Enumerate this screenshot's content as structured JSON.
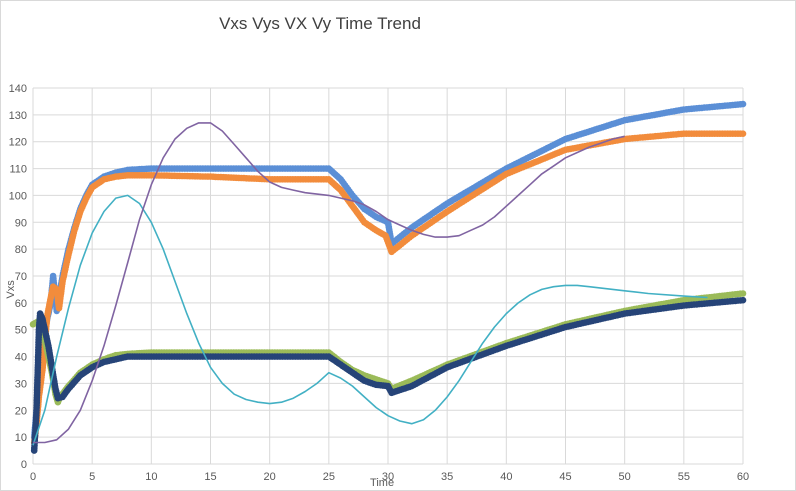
{
  "chart_data": {
    "type": "scatter",
    "title": "Vxs Vys VX Vy  Time  Trend",
    "xlabel": "Time",
    "ylabel": "Vxs",
    "xlim": [
      0,
      60
    ],
    "ylim": [
      0,
      140
    ],
    "xticks": [
      0,
      5,
      10,
      15,
      20,
      25,
      30,
      35,
      40,
      45,
      50,
      55,
      60
    ],
    "yticks": [
      0,
      10,
      20,
      30,
      40,
      50,
      60,
      70,
      80,
      90,
      100,
      110,
      120,
      130,
      140
    ],
    "grid": true,
    "legend": "none",
    "series": [
      {
        "style": "markers",
        "color": "#5b8fd6",
        "points": [
          [
            0.1,
            10
          ],
          [
            0.3,
            20
          ],
          [
            0.5,
            30
          ],
          [
            0.7,
            40
          ],
          [
            0.9,
            47
          ],
          [
            1.1,
            52
          ],
          [
            1.3,
            56
          ],
          [
            1.5,
            60
          ],
          [
            1.7,
            70
          ],
          [
            1.9,
            62
          ],
          [
            2,
            57
          ],
          [
            2.5,
            70
          ],
          [
            3,
            80
          ],
          [
            3.5,
            88
          ],
          [
            4,
            95
          ],
          [
            4.5,
            100
          ],
          [
            5,
            104
          ],
          [
            6,
            107
          ],
          [
            7,
            108.5
          ],
          [
            8,
            109.5
          ],
          [
            10,
            110
          ],
          [
            15,
            110
          ],
          [
            20,
            110
          ],
          [
            25,
            110
          ],
          [
            26,
            106
          ],
          [
            27,
            100
          ],
          [
            28,
            95
          ],
          [
            29,
            92
          ],
          [
            30,
            90
          ],
          [
            30.3,
            82
          ],
          [
            32,
            88
          ],
          [
            35,
            97
          ],
          [
            40,
            110
          ],
          [
            45,
            121
          ],
          [
            50,
            128
          ],
          [
            55,
            132
          ],
          [
            60,
            134
          ]
        ]
      },
      {
        "style": "markers",
        "color": "#f28c3c",
        "points": [
          [
            0.1,
            8
          ],
          [
            0.3,
            15
          ],
          [
            0.5,
            25
          ],
          [
            0.8,
            35
          ],
          [
            1,
            45
          ],
          [
            1.2,
            55
          ],
          [
            1.5,
            62
          ],
          [
            1.7,
            66
          ],
          [
            2,
            65
          ],
          [
            2.2,
            58
          ],
          [
            2.5,
            68
          ],
          [
            3,
            78
          ],
          [
            3.5,
            87
          ],
          [
            4,
            94
          ],
          [
            4.5,
            99
          ],
          [
            5,
            103
          ],
          [
            6,
            106
          ],
          [
            7,
            107
          ],
          [
            8,
            107.5
          ],
          [
            10,
            107.5
          ],
          [
            15,
            107
          ],
          [
            20,
            106
          ],
          [
            25,
            106
          ],
          [
            26,
            102
          ],
          [
            27,
            96
          ],
          [
            28,
            90
          ],
          [
            29,
            87
          ],
          [
            29.8,
            85
          ],
          [
            30.3,
            79
          ],
          [
            32,
            85
          ],
          [
            35,
            94
          ],
          [
            40,
            108
          ],
          [
            45,
            117
          ],
          [
            50,
            121
          ],
          [
            55,
            123
          ],
          [
            60,
            123
          ]
        ]
      },
      {
        "style": "markers",
        "color": "#9bbb59",
        "points": [
          [
            0,
            52
          ],
          [
            0.4,
            53
          ],
          [
            0.8,
            52
          ],
          [
            1,
            46
          ],
          [
            1.3,
            40
          ],
          [
            1.6,
            34
          ],
          [
            1.9,
            26
          ],
          [
            2.1,
            23
          ],
          [
            2.3,
            25
          ],
          [
            3,
            29
          ],
          [
            4,
            34
          ],
          [
            5,
            37
          ],
          [
            6,
            39
          ],
          [
            7,
            40.5
          ],
          [
            8,
            41
          ],
          [
            10,
            41.5
          ],
          [
            15,
            41.5
          ],
          [
            20,
            41.5
          ],
          [
            25,
            41.5
          ],
          [
            26,
            38
          ],
          [
            27,
            35
          ],
          [
            28,
            33
          ],
          [
            29,
            31.5
          ],
          [
            30,
            30
          ],
          [
            30.3,
            28
          ],
          [
            32,
            31
          ],
          [
            35,
            37
          ],
          [
            40,
            45
          ],
          [
            45,
            52
          ],
          [
            50,
            57
          ],
          [
            55,
            61
          ],
          [
            60,
            63.5
          ]
        ]
      },
      {
        "style": "markers",
        "color": "#264478",
        "points": [
          [
            0.1,
            5
          ],
          [
            0.3,
            20
          ],
          [
            0.4,
            35
          ],
          [
            0.5,
            50
          ],
          [
            0.6,
            56
          ],
          [
            0.8,
            54
          ],
          [
            1,
            50
          ],
          [
            1.3,
            44
          ],
          [
            1.6,
            36
          ],
          [
            1.9,
            28
          ],
          [
            2.1,
            24.5
          ],
          [
            2.5,
            25
          ],
          [
            3,
            28
          ],
          [
            4,
            33
          ],
          [
            5,
            36
          ],
          [
            6,
            38
          ],
          [
            7,
            39
          ],
          [
            8,
            40
          ],
          [
            10,
            40
          ],
          [
            15,
            40
          ],
          [
            20,
            40
          ],
          [
            25,
            40
          ],
          [
            26,
            37
          ],
          [
            27,
            34
          ],
          [
            28,
            31
          ],
          [
            29,
            29.5
          ],
          [
            30,
            29
          ],
          [
            30.3,
            26.5
          ],
          [
            32,
            29
          ],
          [
            35,
            36
          ],
          [
            40,
            44
          ],
          [
            45,
            51
          ],
          [
            50,
            56
          ],
          [
            55,
            59
          ],
          [
            60,
            61
          ]
        ]
      },
      {
        "style": "line",
        "color": "#42b0c4",
        "points": [
          [
            0,
            7
          ],
          [
            1,
            20
          ],
          [
            2,
            40
          ],
          [
            3,
            58
          ],
          [
            4,
            74
          ],
          [
            5,
            86
          ],
          [
            6,
            94
          ],
          [
            7,
            99
          ],
          [
            8,
            100
          ],
          [
            9,
            97
          ],
          [
            10,
            90
          ],
          [
            11,
            80
          ],
          [
            12,
            68
          ],
          [
            13,
            56
          ],
          [
            14,
            45
          ],
          [
            15,
            36
          ],
          [
            16,
            30
          ],
          [
            17,
            26
          ],
          [
            18,
            24
          ],
          [
            19,
            23
          ],
          [
            20,
            22.5
          ],
          [
            21,
            23
          ],
          [
            22,
            24.5
          ],
          [
            23,
            27
          ],
          [
            24,
            30
          ],
          [
            25,
            34
          ],
          [
            26,
            32
          ],
          [
            27,
            29
          ],
          [
            28,
            25
          ],
          [
            29,
            21
          ],
          [
            30,
            18
          ],
          [
            31,
            16
          ],
          [
            32,
            15
          ],
          [
            33,
            16.5
          ],
          [
            34,
            20
          ],
          [
            35,
            25
          ],
          [
            36,
            31
          ],
          [
            37,
            38
          ],
          [
            38,
            45
          ],
          [
            39,
            51
          ],
          [
            40,
            56
          ],
          [
            41,
            60
          ],
          [
            42,
            63
          ],
          [
            43,
            65
          ],
          [
            44,
            66
          ],
          [
            45,
            66.5
          ],
          [
            46,
            66.5
          ],
          [
            47,
            66
          ],
          [
            48,
            65.5
          ],
          [
            50,
            64.5
          ],
          [
            52,
            63.5
          ],
          [
            55,
            62.5
          ],
          [
            57,
            62
          ]
        ]
      },
      {
        "style": "line",
        "color": "#8064a2",
        "points": [
          [
            0,
            8
          ],
          [
            1,
            8
          ],
          [
            2,
            9
          ],
          [
            3,
            13
          ],
          [
            4,
            20
          ],
          [
            5,
            31
          ],
          [
            6,
            44
          ],
          [
            7,
            59
          ],
          [
            8,
            75
          ],
          [
            9,
            91
          ],
          [
            10,
            104
          ],
          [
            11,
            114
          ],
          [
            12,
            121
          ],
          [
            13,
            125
          ],
          [
            14,
            127
          ],
          [
            15,
            127
          ],
          [
            16,
            124
          ],
          [
            17,
            119
          ],
          [
            18,
            114
          ],
          [
            19,
            109
          ],
          [
            20,
            105
          ],
          [
            21,
            103
          ],
          [
            22,
            102
          ],
          [
            23,
            101
          ],
          [
            24,
            100.5
          ],
          [
            25,
            100
          ],
          [
            26,
            99
          ],
          [
            27,
            98
          ],
          [
            28,
            96.5
          ],
          [
            29,
            94
          ],
          [
            30,
            91
          ],
          [
            31,
            89
          ],
          [
            32,
            87
          ],
          [
            33,
            85.5
          ],
          [
            34,
            84.5
          ],
          [
            35,
            84.5
          ],
          [
            36,
            85
          ],
          [
            37,
            87
          ],
          [
            38,
            89
          ],
          [
            39,
            92
          ],
          [
            40,
            96
          ],
          [
            41,
            100
          ],
          [
            42,
            104
          ],
          [
            43,
            108
          ],
          [
            44,
            111
          ],
          [
            45,
            114
          ],
          [
            46,
            116
          ],
          [
            47,
            118
          ],
          [
            48,
            119.5
          ],
          [
            49,
            121
          ],
          [
            50,
            122
          ]
        ]
      }
    ]
  }
}
